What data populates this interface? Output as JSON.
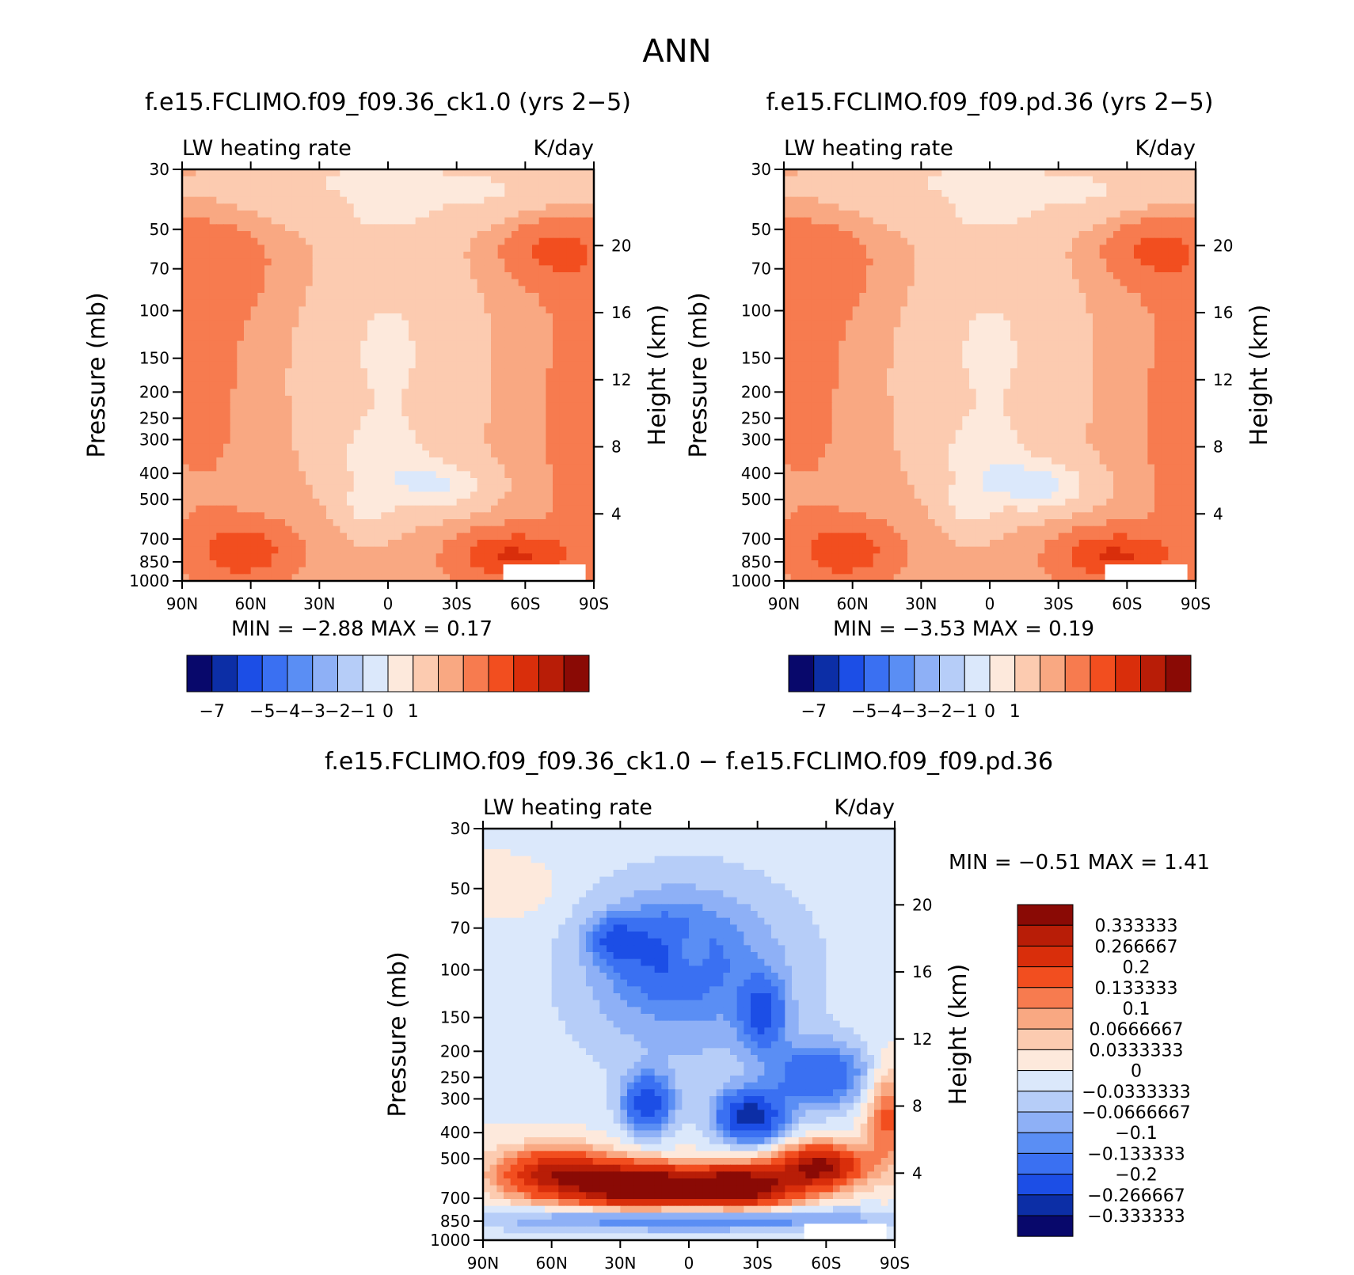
{
  "figure_title": "ANN",
  "chart_data": [
    {
      "type": "heatmap",
      "title": "f.e15.FCLIMO.f09_f09.36_ck1.0 (yrs 2−5)",
      "left_label": "LW heating rate",
      "right_label": "K/day",
      "ylabel": "Pressure (mb)",
      "ylabel_right": "Height (km)",
      "x_ticks": [
        "90N",
        "60N",
        "30N",
        "0",
        "30S",
        "60S",
        "90S"
      ],
      "x_values": [
        90,
        60,
        30,
        0,
        -30,
        -60,
        -90
      ],
      "y_ticks": [
        "30",
        "50",
        "70",
        "100",
        "150",
        "200",
        "250",
        "300",
        "400",
        "500",
        "700",
        "850",
        "1000"
      ],
      "y_values": [
        30,
        50,
        70,
        100,
        150,
        200,
        250,
        300,
        400,
        500,
        700,
        850,
        1000
      ],
      "height_ticks": [
        "20",
        "16",
        "12",
        "8",
        "4"
      ],
      "height_values": [
        20,
        16,
        12,
        8,
        4
      ],
      "min_label": "MIN =",
      "min_value": "−2.88",
      "max_label": "MAX =",
      "max_value": "0.17",
      "colorbar_labels": [
        "−7",
        "−5",
        "−4",
        "−3",
        "−2",
        "−1",
        "0",
        "1"
      ]
    },
    {
      "type": "heatmap",
      "title": "f.e15.FCLIMO.f09_f09.pd.36 (yrs 2−5)",
      "left_label": "LW heating rate",
      "right_label": "K/day",
      "ylabel": "Pressure (mb)",
      "ylabel_right": "Height (km)",
      "x_ticks": [
        "90N",
        "60N",
        "30N",
        "0",
        "30S",
        "60S",
        "90S"
      ],
      "x_values": [
        90,
        60,
        30,
        0,
        -30,
        -60,
        -90
      ],
      "y_ticks": [
        "30",
        "50",
        "70",
        "100",
        "150",
        "200",
        "250",
        "300",
        "400",
        "500",
        "700",
        "850",
        "1000"
      ],
      "y_values": [
        30,
        50,
        70,
        100,
        150,
        200,
        250,
        300,
        400,
        500,
        700,
        850,
        1000
      ],
      "height_ticks": [
        "20",
        "16",
        "12",
        "8",
        "4"
      ],
      "height_values": [
        20,
        16,
        12,
        8,
        4
      ],
      "min_label": "MIN =",
      "min_value": "−3.53",
      "max_label": "MAX =",
      "max_value": "0.19",
      "colorbar_labels": [
        "−7",
        "−5",
        "−4",
        "−3",
        "−2",
        "−1",
        "0",
        "1"
      ]
    },
    {
      "type": "heatmap",
      "title": "f.e15.FCLIMO.f09_f09.36_ck1.0 − f.e15.FCLIMO.f09_f09.pd.36",
      "left_label": "LW heating rate",
      "right_label": "K/day",
      "ylabel": "Pressure (mb)",
      "ylabel_right": "Height (km)",
      "x_ticks": [
        "90N",
        "60N",
        "30N",
        "0",
        "30S",
        "60S",
        "90S"
      ],
      "x_values": [
        90,
        60,
        30,
        0,
        -30,
        -60,
        -90
      ],
      "y_ticks": [
        "30",
        "50",
        "70",
        "100",
        "150",
        "200",
        "250",
        "300",
        "400",
        "500",
        "700",
        "850",
        "1000"
      ],
      "y_values": [
        30,
        50,
        70,
        100,
        150,
        200,
        250,
        300,
        400,
        500,
        700,
        850,
        1000
      ],
      "height_ticks": [
        "20",
        "16",
        "12",
        "8",
        "4"
      ],
      "height_values": [
        20,
        16,
        12,
        8,
        4
      ],
      "min_label": "MIN =",
      "min_value": "−0.51",
      "max_label": "MAX =",
      "max_value": "1.41",
      "colorbar_labels": [
        "0.333333",
        "0.266667",
        "0.2",
        "0.133333",
        "0.1",
        "0.0666667",
        "0.0333333",
        "0",
        "−0.0333333",
        "−0.0666667",
        "−0.1",
        "−0.133333",
        "−0.2",
        "−0.266667",
        "−0.333333"
      ]
    }
  ],
  "colors": {
    "main_scale": [
      "#08086b",
      "#0c2ea6",
      "#1c4ee6",
      "#3a70f2",
      "#5a8ef4",
      "#8eb0f6",
      "#b6cdf8",
      "#dbe8fb",
      "#fde9dc",
      "#fccbb0",
      "#f9a882",
      "#f77b4f",
      "#f24e1f",
      "#d92e0b",
      "#b81d07",
      "#8a0a05"
    ],
    "diff_scale": [
      "#8a0a05",
      "#b81d07",
      "#d92e0b",
      "#f24e1f",
      "#f77b4f",
      "#f9a882",
      "#fccbb0",
      "#fde9dc",
      "#dbe8fb",
      "#b6cdf8",
      "#8eb0f6",
      "#5a8ef4",
      "#3a70f2",
      "#1c4ee6",
      "#0c2ea6",
      "#08086b"
    ]
  }
}
